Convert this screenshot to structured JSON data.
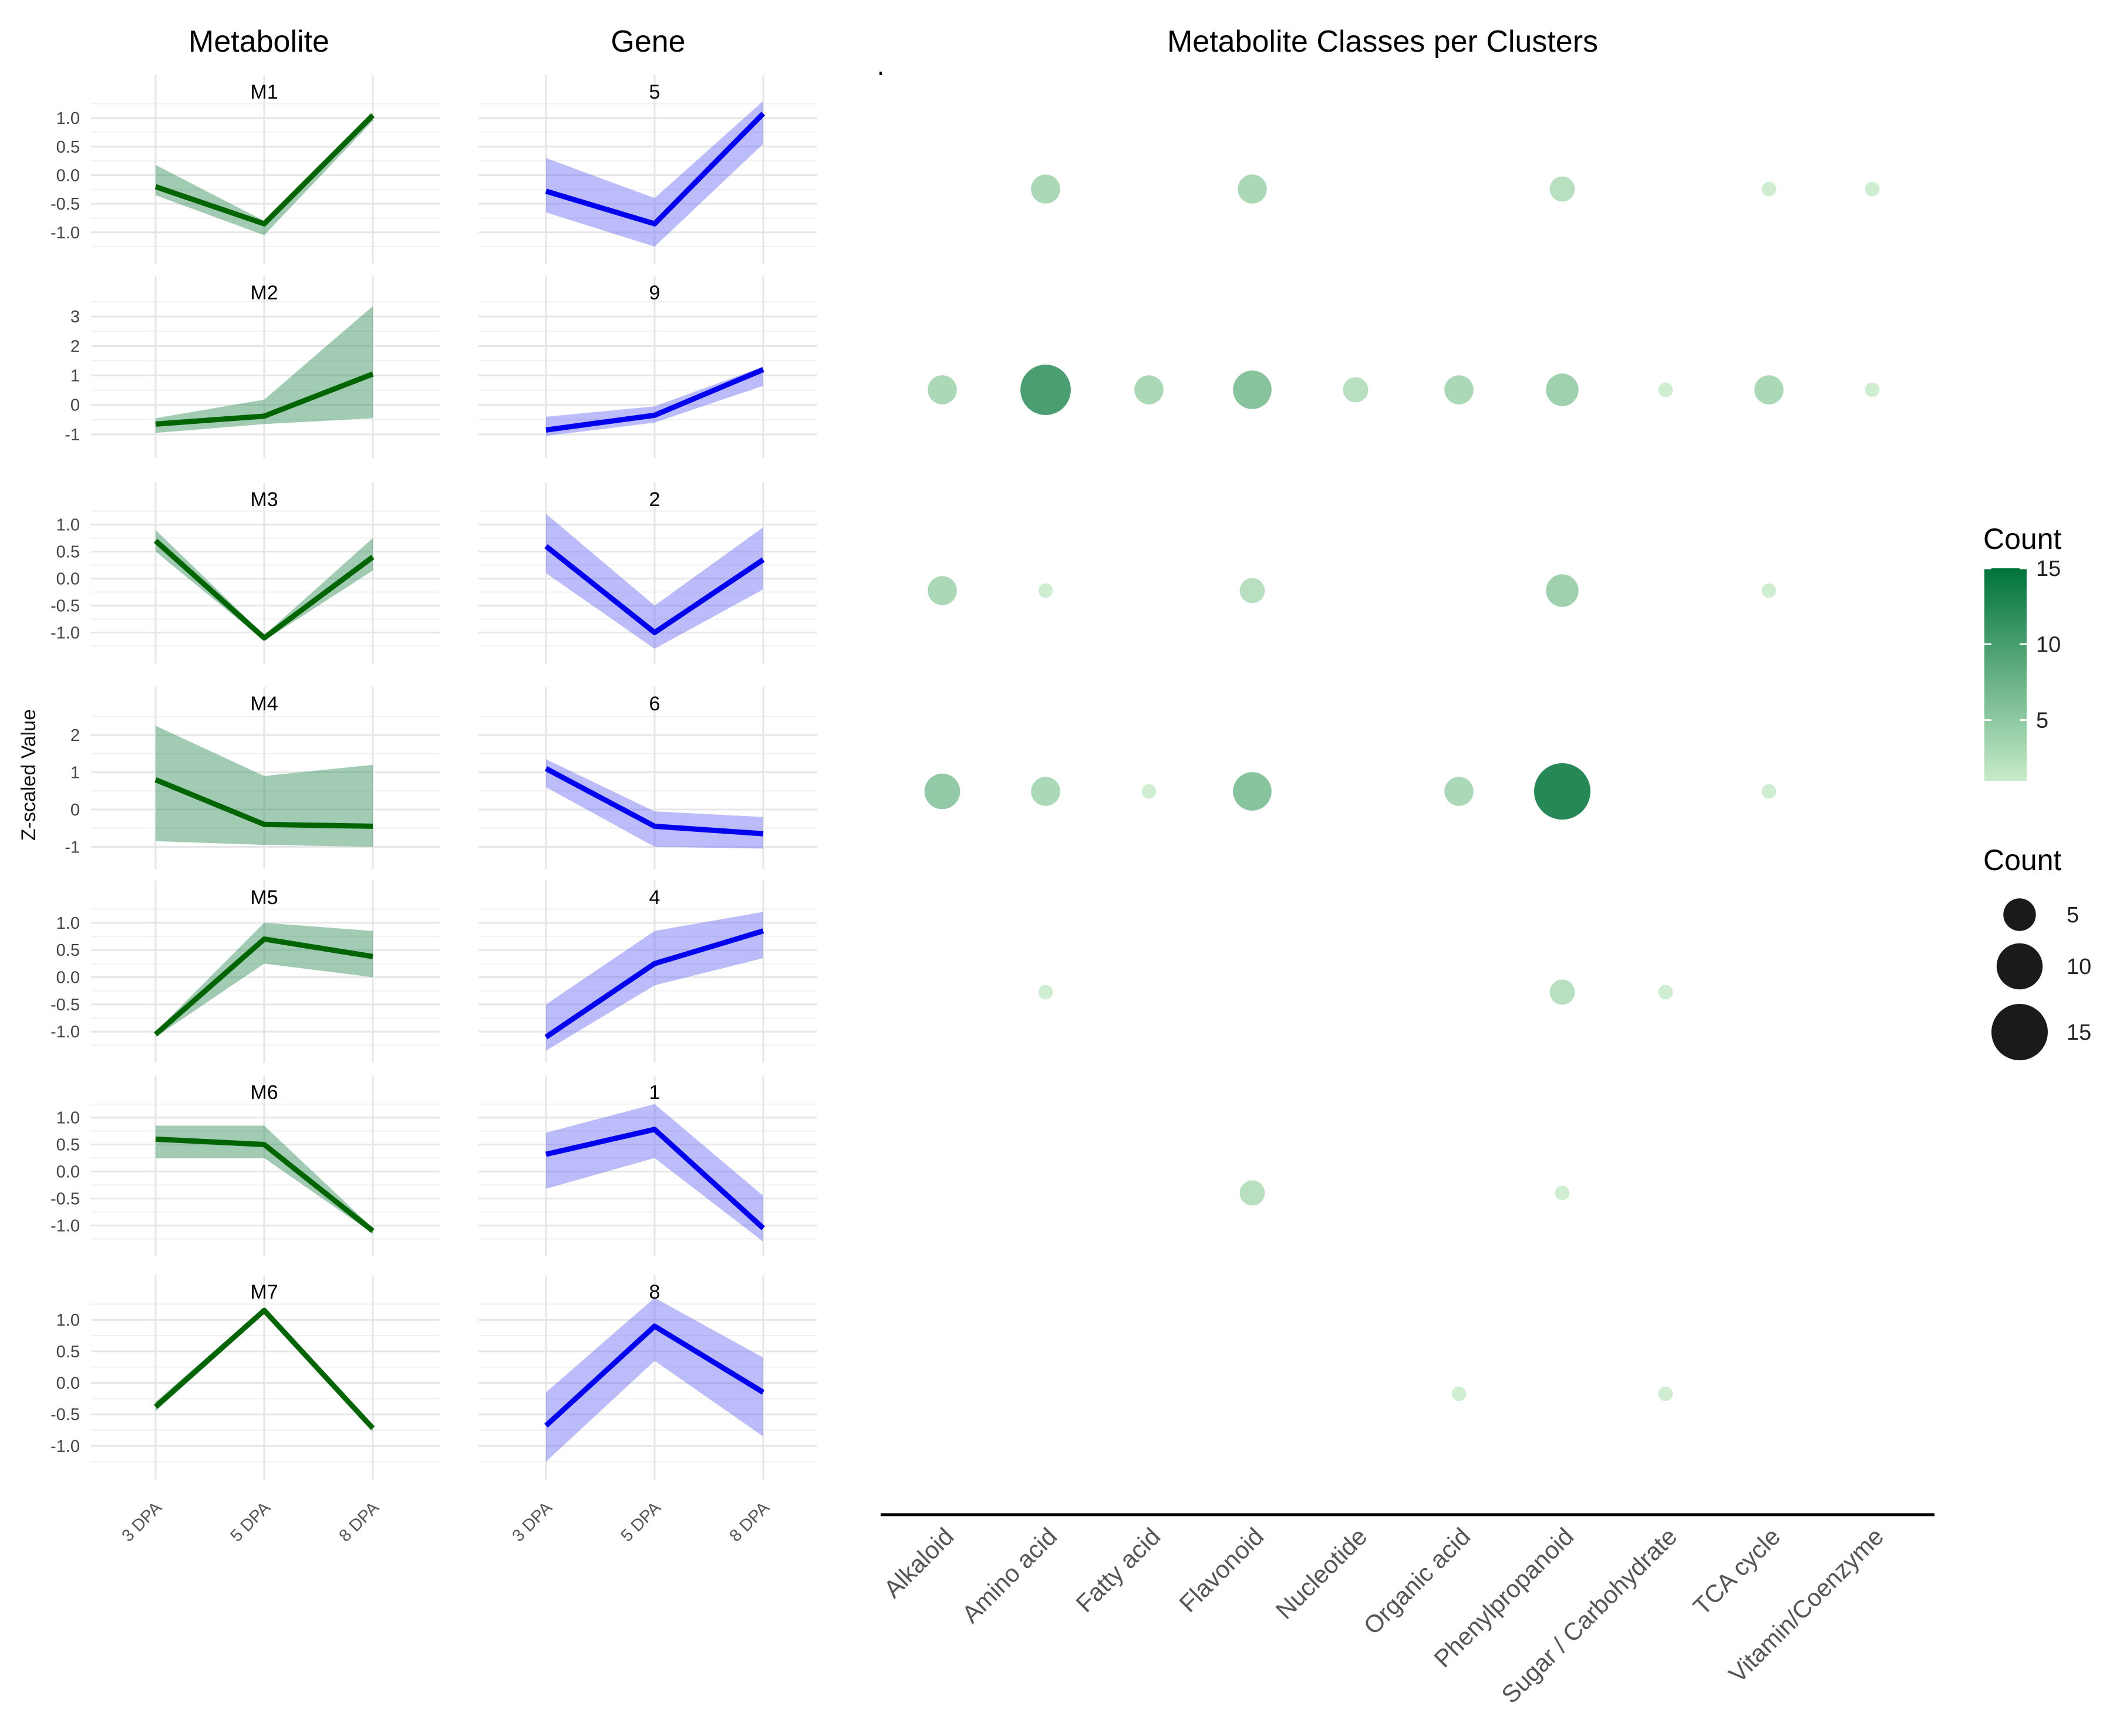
{
  "chart_data": [
    {
      "type": "line",
      "panel_title": "Metabolite",
      "ylabel": "Z-scaled Value",
      "x": [
        "3 DPA",
        "5 DPA",
        "8 DPA"
      ],
      "color": "#006400",
      "band_color": "#2e8b57",
      "series": [
        {
          "name": "M1",
          "mean": [
            -0.2,
            -0.85,
            1.05
          ],
          "lower": [
            -0.35,
            -1.05,
            0.95
          ],
          "upper": [
            0.18,
            -0.8,
            1.1
          ],
          "yticks": [
            "1.0",
            "0.5",
            "0.0",
            "-0.5",
            "-1.0"
          ],
          "ylim": [
            -1.3,
            1.3
          ]
        },
        {
          "name": "M2",
          "mean": [
            -0.65,
            -0.38,
            1.05
          ],
          "lower": [
            -0.95,
            -0.65,
            -0.45
          ],
          "upper": [
            -0.45,
            0.18,
            3.35
          ],
          "yticks": [
            "3",
            "2",
            "1",
            "0",
            "-1"
          ],
          "ylim": [
            -1.3,
            3.5
          ]
        },
        {
          "name": "M3",
          "mean": [
            0.7,
            -1.1,
            0.4
          ],
          "lower": [
            0.5,
            -1.15,
            0.15
          ],
          "upper": [
            0.9,
            -1.05,
            0.75
          ],
          "yticks": [
            "1.0",
            "0.5",
            "0.0",
            "-0.5",
            "-1.0"
          ],
          "ylim": [
            -1.3,
            1.3
          ]
        },
        {
          "name": "M4",
          "mean": [
            0.8,
            -0.4,
            -0.45
          ],
          "lower": [
            -0.85,
            -0.95,
            -1.0
          ],
          "upper": [
            2.25,
            0.9,
            1.2
          ],
          "yticks": [
            "2",
            "1",
            "0",
            "-1"
          ],
          "ylim": [
            -1.2,
            2.6
          ]
        },
        {
          "name": "M5",
          "mean": [
            -1.05,
            0.7,
            0.38
          ],
          "lower": [
            -1.1,
            0.25,
            0.0
          ],
          "upper": [
            -1.0,
            1.0,
            0.85
          ],
          "yticks": [
            "1.0",
            "0.5",
            "0.0",
            "-0.5",
            "-1.0"
          ],
          "ylim": [
            -1.3,
            1.3
          ]
        },
        {
          "name": "M6",
          "mean": [
            0.6,
            0.5,
            -1.1
          ],
          "lower": [
            0.25,
            0.25,
            -1.15
          ],
          "upper": [
            0.85,
            0.85,
            -1.05
          ],
          "yticks": [
            "1.0",
            "0.5",
            "0.0",
            "-0.5",
            "-1.0"
          ],
          "ylim": [
            -1.3,
            1.3
          ]
        },
        {
          "name": "M7",
          "mean": [
            -0.38,
            1.15,
            -0.72
          ],
          "lower": [
            -0.45,
            1.1,
            -0.77
          ],
          "upper": [
            -0.3,
            1.2,
            -0.67
          ],
          "yticks": [
            "1.0",
            "0.5",
            "0.0",
            "-0.5",
            "-1.0"
          ],
          "ylim": [
            -1.3,
            1.3
          ]
        }
      ]
    },
    {
      "type": "line",
      "panel_title": "Gene",
      "x": [
        "3 DPA",
        "5 DPA",
        "8 DPA"
      ],
      "color": "#0000ee",
      "band_color": "#6a6af5",
      "series": [
        {
          "name": "5",
          "mean": [
            -0.28,
            -0.85,
            1.08
          ],
          "lower": [
            -0.65,
            -1.25,
            0.55
          ],
          "upper": [
            0.3,
            -0.4,
            1.3
          ],
          "ylim": [
            -1.3,
            1.3
          ]
        },
        {
          "name": "9",
          "mean": [
            -0.85,
            -0.35,
            1.2
          ],
          "lower": [
            -1.05,
            -0.6,
            0.65
          ],
          "upper": [
            -0.4,
            -0.05,
            1.3
          ],
          "ylim": [
            -1.3,
            3.5
          ]
        },
        {
          "name": "2",
          "mean": [
            0.6,
            -1.0,
            0.35
          ],
          "lower": [
            0.1,
            -1.3,
            -0.2
          ],
          "upper": [
            1.2,
            -0.5,
            0.95
          ],
          "ylim": [
            -1.3,
            1.3
          ]
        },
        {
          "name": "6",
          "mean": [
            1.1,
            -0.45,
            -0.65
          ],
          "lower": [
            0.6,
            -1.0,
            -1.05
          ],
          "upper": [
            1.35,
            -0.05,
            -0.2
          ],
          "ylim": [
            -1.2,
            2.6
          ]
        },
        {
          "name": "4",
          "mean": [
            -1.1,
            0.25,
            0.85
          ],
          "lower": [
            -1.35,
            -0.15,
            0.35
          ],
          "upper": [
            -0.5,
            0.85,
            1.2
          ],
          "ylim": [
            -1.3,
            1.3
          ]
        },
        {
          "name": "1",
          "mean": [
            0.32,
            0.78,
            -1.05
          ],
          "lower": [
            -0.32,
            0.25,
            -1.3
          ],
          "upper": [
            0.72,
            1.25,
            -0.45
          ],
          "ylim": [
            -1.3,
            1.3
          ]
        },
        {
          "name": "8",
          "mean": [
            -0.68,
            0.9,
            -0.15
          ],
          "lower": [
            -1.25,
            0.35,
            -0.85
          ],
          "upper": [
            -0.15,
            1.35,
            0.4
          ],
          "ylim": [
            -1.3,
            1.3
          ]
        }
      ]
    },
    {
      "type": "scatter",
      "panel_title": "Metabolite Classes per Clusters",
      "categories": [
        "Alkaloid",
        "Amino acid",
        "Fatty acid",
        "Flavonoid",
        "Nucleotide",
        "Organic acid",
        "Phenylpropanoid",
        "Sugar / Carbohydrate",
        "TCA cycle",
        "Vitamin/Coenzyme"
      ],
      "rows": [
        "M1",
        "M2",
        "M3",
        "M4",
        "M5",
        "M6",
        "M7"
      ],
      "points": [
        {
          "row": 0,
          "col": 1,
          "count": 4
        },
        {
          "row": 0,
          "col": 3,
          "count": 4
        },
        {
          "row": 0,
          "col": 6,
          "count": 3
        },
        {
          "row": 0,
          "col": 8,
          "count": 1
        },
        {
          "row": 0,
          "col": 9,
          "count": 1
        },
        {
          "row": 1,
          "col": 0,
          "count": 4
        },
        {
          "row": 1,
          "col": 1,
          "count": 12
        },
        {
          "row": 1,
          "col": 2,
          "count": 4
        },
        {
          "row": 1,
          "col": 3,
          "count": 7
        },
        {
          "row": 1,
          "col": 4,
          "count": 3
        },
        {
          "row": 1,
          "col": 5,
          "count": 4
        },
        {
          "row": 1,
          "col": 6,
          "count": 5
        },
        {
          "row": 1,
          "col": 7,
          "count": 1
        },
        {
          "row": 1,
          "col": 8,
          "count": 4
        },
        {
          "row": 1,
          "col": 9,
          "count": 1
        },
        {
          "row": 2,
          "col": 0,
          "count": 4
        },
        {
          "row": 2,
          "col": 1,
          "count": 1
        },
        {
          "row": 2,
          "col": 3,
          "count": 3
        },
        {
          "row": 2,
          "col": 6,
          "count": 5
        },
        {
          "row": 2,
          "col": 8,
          "count": 1
        },
        {
          "row": 3,
          "col": 0,
          "count": 6
        },
        {
          "row": 3,
          "col": 1,
          "count": 4
        },
        {
          "row": 3,
          "col": 2,
          "count": 1
        },
        {
          "row": 3,
          "col": 3,
          "count": 7
        },
        {
          "row": 3,
          "col": 5,
          "count": 4
        },
        {
          "row": 3,
          "col": 6,
          "count": 15
        },
        {
          "row": 3,
          "col": 8,
          "count": 1
        },
        {
          "row": 4,
          "col": 1,
          "count": 1
        },
        {
          "row": 4,
          "col": 6,
          "count": 3
        },
        {
          "row": 4,
          "col": 7,
          "count": 1
        },
        {
          "row": 5,
          "col": 3,
          "count": 3
        },
        {
          "row": 5,
          "col": 6,
          "count": 1
        },
        {
          "row": 6,
          "col": 5,
          "count": 1
        },
        {
          "row": 6,
          "col": 7,
          "count": 1
        }
      ],
      "legend": {
        "color_title": "Count",
        "color_ticks": [
          "15",
          "10",
          "5"
        ],
        "color_low": "#c7ebc9",
        "color_high": "#00733a",
        "size_title": "Count",
        "size_ticks": [
          "5",
          "10",
          "15"
        ]
      }
    }
  ]
}
